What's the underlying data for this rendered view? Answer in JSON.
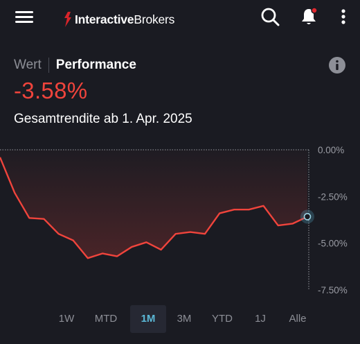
{
  "header": {
    "logo_bold": "Interactive",
    "logo_light": "Brokers",
    "brand_color": "#d8242a",
    "icons": [
      "menu-icon",
      "search-icon",
      "bell-icon",
      "more-icon"
    ]
  },
  "tabs": {
    "wert": "Wert",
    "performance": "Performance",
    "active": "Performance"
  },
  "summary": {
    "value": "-3.58%",
    "subtitle": "Gesamtrendite ab 1. Apr. 2025",
    "value_color": "#f0443c"
  },
  "chart_data": {
    "type": "line",
    "title": "",
    "xlabel": "",
    "ylabel": "",
    "ylim": [
      -7.5,
      0
    ],
    "y_ticks": [
      "0.00%",
      "-2.50%",
      "-5.00%",
      "-7.50%"
    ],
    "y_tick_values": [
      0,
      -2.5,
      -5,
      -7.5
    ],
    "grid": true,
    "line_color": "#f0443c",
    "series": [
      {
        "values": [
          -0.4,
          -2.3,
          -3.65,
          -3.7,
          -4.5,
          -4.85,
          -5.8,
          -5.55,
          -5.7,
          -5.2,
          -4.95,
          -5.35,
          -4.5,
          -4.4,
          -4.5,
          -3.4,
          -3.2,
          -3.2,
          -3.0,
          -4.05,
          -3.95,
          -3.58
        ]
      }
    ]
  },
  "ranges": {
    "items": [
      "1W",
      "MTD",
      "1M",
      "3M",
      "YTD",
      "1J",
      "Alle"
    ],
    "active": "1M"
  }
}
